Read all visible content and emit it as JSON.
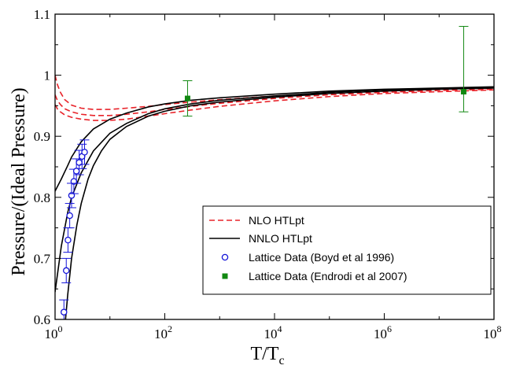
{
  "chart_data": {
    "type": "line",
    "title": "",
    "xlabel": {
      "base": "T/T",
      "sub": "c"
    },
    "ylabel": "Pressure/(Ideal Pressure)",
    "x_scale": "log",
    "xlim": [
      1,
      100000000
    ],
    "ylim": [
      0.6,
      1.1
    ],
    "x_ticks": [
      {
        "value": 1,
        "base": "10",
        "exp": "0"
      },
      {
        "value": 100,
        "base": "10",
        "exp": "2"
      },
      {
        "value": 10000,
        "base": "10",
        "exp": "4"
      },
      {
        "value": 1000000,
        "base": "10",
        "exp": "6"
      },
      {
        "value": 100000000,
        "base": "10",
        "exp": "8"
      }
    ],
    "y_ticks": [
      "0.6",
      "0.7",
      "0.8",
      "0.9",
      "1",
      "1.1"
    ],
    "grid": false,
    "legend_position": "bottom-right",
    "series": [
      {
        "name": "NLO HTLpt",
        "style": "dashed",
        "color": "#e8232a",
        "lines": [
          {
            "x": [
              1,
              1.1,
              1.25,
              1.5,
              2,
              3,
              5,
              10,
              20,
              50,
              100,
              300,
              1000,
              10000,
              100000,
              1000000,
              10000000,
              100000000
            ],
            "y": [
              1.0,
              0.985,
              0.972,
              0.96,
              0.951,
              0.946,
              0.944,
              0.944,
              0.946,
              0.949,
              0.952,
              0.956,
              0.96,
              0.966,
              0.971,
              0.974,
              0.977,
              0.979
            ]
          },
          {
            "x": [
              1,
              1.1,
              1.25,
              1.5,
              2,
              3,
              5,
              10,
              20,
              50,
              100,
              300,
              1000,
              10000,
              100000,
              1000000,
              10000000,
              100000000
            ],
            "y": [
              0.968,
              0.959,
              0.952,
              0.945,
              0.94,
              0.936,
              0.934,
              0.934,
              0.936,
              0.94,
              0.944,
              0.949,
              0.954,
              0.962,
              0.968,
              0.972,
              0.975,
              0.977
            ]
          },
          {
            "x": [
              1,
              1.1,
              1.25,
              1.5,
              2,
              3,
              5,
              10,
              20,
              50,
              100,
              300,
              1000,
              10000,
              100000,
              1000000,
              10000000,
              100000000
            ],
            "y": [
              0.952,
              0.945,
              0.94,
              0.935,
              0.931,
              0.928,
              0.926,
              0.926,
              0.928,
              0.933,
              0.937,
              0.943,
              0.949,
              0.958,
              0.965,
              0.97,
              0.973,
              0.976
            ]
          }
        ]
      },
      {
        "name": "NNLO HTLpt",
        "style": "solid",
        "color": "#000000",
        "lines": [
          {
            "x": [
              1,
              1.3,
              1.7,
              2,
              3,
              5,
              10,
              20,
              50,
              100,
              300,
              1000,
              10000,
              100000,
              1000000,
              10000000,
              100000000
            ],
            "y": [
              0.81,
              0.83,
              0.852,
              0.866,
              0.891,
              0.912,
              0.928,
              0.938,
              0.948,
              0.953,
              0.959,
              0.963,
              0.969,
              0.974,
              0.977,
              0.979,
              0.981
            ]
          },
          {
            "x": [
              1,
              1.3,
              1.7,
              2,
              3,
              5,
              10,
              20,
              50,
              100,
              300,
              1000,
              10000,
              100000,
              1000000,
              10000000,
              100000000
            ],
            "y": [
              0.645,
              0.72,
              0.775,
              0.8,
              0.84,
              0.876,
              0.905,
              0.921,
              0.937,
              0.945,
              0.953,
              0.959,
              0.966,
              0.972,
              0.976,
              0.978,
              0.98
            ]
          },
          {
            "x": [
              1.55,
              1.7,
              2,
              2.5,
              3,
              4,
              5,
              7,
              10,
              20,
              50,
              100,
              300,
              1000,
              10000,
              100000,
              1000000,
              10000000,
              100000000
            ],
            "y": [
              0.6,
              0.64,
              0.7,
              0.755,
              0.79,
              0.83,
              0.852,
              0.876,
              0.895,
              0.916,
              0.933,
              0.941,
              0.95,
              0.956,
              0.964,
              0.97,
              0.974,
              0.977,
              0.979
            ]
          }
        ]
      },
      {
        "name": "Lattice Data (Boyd et al 1996)",
        "style": "open-circle",
        "color": "#1515d8",
        "points": [
          {
            "x": 1.45,
            "y": 0.612,
            "err": 0.02
          },
          {
            "x": 1.6,
            "y": 0.68,
            "err": 0.02
          },
          {
            "x": 1.72,
            "y": 0.73,
            "err": 0.02
          },
          {
            "x": 1.85,
            "y": 0.77,
            "err": 0.02
          },
          {
            "x": 2.0,
            "y": 0.803,
            "err": 0.02
          },
          {
            "x": 2.2,
            "y": 0.826,
            "err": 0.02
          },
          {
            "x": 2.45,
            "y": 0.843,
            "err": 0.02
          },
          {
            "x": 2.75,
            "y": 0.857,
            "err": 0.02
          },
          {
            "x": 3.1,
            "y": 0.867,
            "err": 0.02
          },
          {
            "x": 3.45,
            "y": 0.874,
            "err": 0.02
          }
        ]
      },
      {
        "name": "Lattice Data (Endrodi et al 2007)",
        "style": "filled-square",
        "color": "#118811",
        "points": [
          {
            "x": 260,
            "y": 0.962,
            "err_low": 0.029,
            "err_high": 0.029
          },
          {
            "x": 28000000,
            "y": 0.973,
            "err_low": 0.033,
            "err_high": 0.107
          }
        ]
      }
    ]
  }
}
